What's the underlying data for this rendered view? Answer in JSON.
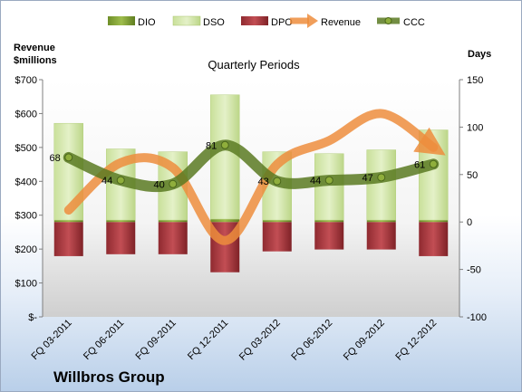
{
  "chart_data": {
    "type": "bar",
    "title": "Quarterly Periods",
    "company": "Willbros Group",
    "left_axis_label_line1": "Revenue",
    "left_axis_label_line2": "$millions",
    "right_axis_label": "Days",
    "categories": [
      "FQ 03-2011",
      "FQ 06-2011",
      "FQ 09-2011",
      "FQ 12-2011",
      "FQ 03-2012",
      "FQ 06-2012",
      "FQ 09-2012",
      "FQ 12-2012"
    ],
    "left_axis": {
      "min": 0,
      "max": 700,
      "step": 100,
      "tick_labels": [
        "$-",
        "$100",
        "$200",
        "$300",
        "$400",
        "$500",
        "$600",
        "$700"
      ]
    },
    "right_axis": {
      "min": -100,
      "max": 150,
      "step": 50,
      "tick_labels": [
        "-100",
        "-50",
        "0",
        "50",
        "100",
        "150"
      ]
    },
    "legend_position": "top",
    "grid": false,
    "series": [
      {
        "name": "DIO",
        "type": "stacked-bar",
        "axis": "right",
        "color": "#7a9a2e",
        "values": [
          2,
          2,
          2,
          3,
          2,
          2,
          2,
          2
        ]
      },
      {
        "name": "DSO",
        "type": "stacked-bar",
        "axis": "right",
        "color": "#d9ebb5",
        "values": [
          102,
          75,
          72,
          131,
          72,
          70,
          74,
          95
        ]
      },
      {
        "name": "DPO",
        "type": "stacked-bar",
        "axis": "right",
        "color": "#a8373d",
        "values": [
          -36,
          -34,
          -34,
          -53,
          -31,
          -29,
          -29,
          -36
        ]
      },
      {
        "name": "Revenue",
        "type": "line",
        "axis": "left",
        "color": "#ed8d3d",
        "values": [
          315,
          455,
          440,
          225,
          450,
          520,
          600,
          500
        ]
      },
      {
        "name": "CCC",
        "type": "line",
        "axis": "right",
        "color": "#5a7a22",
        "values": [
          68,
          44,
          40,
          81,
          43,
          44,
          47,
          61
        ],
        "labels": [
          "68",
          "44",
          "40",
          "81",
          "43",
          "44",
          "47",
          "61"
        ]
      }
    ]
  }
}
